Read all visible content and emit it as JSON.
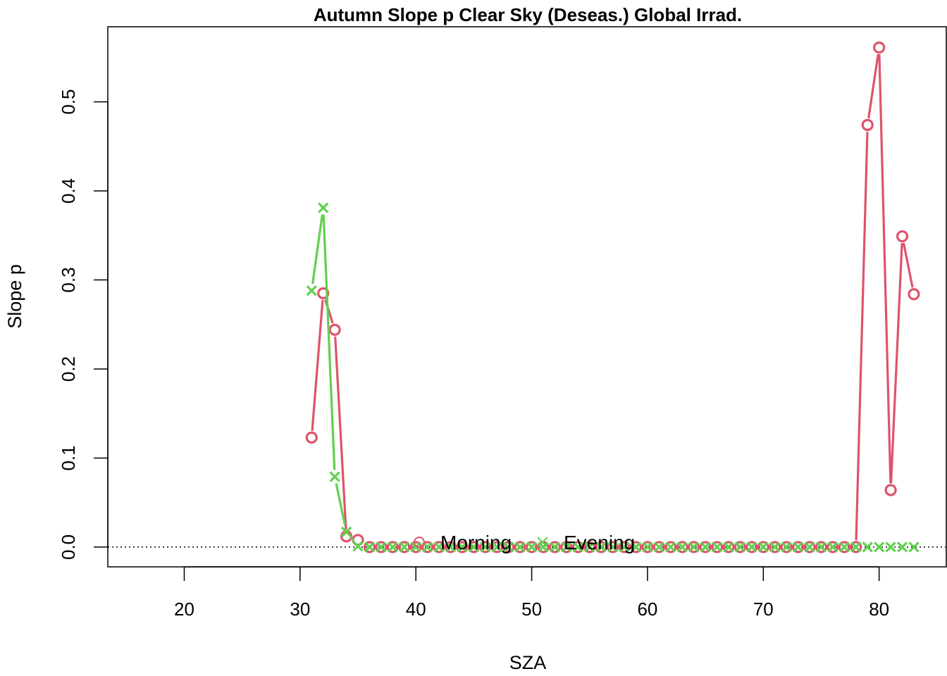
{
  "chart_data": {
    "type": "line",
    "title": "Autumn Slope p Clear Sky (Deseas.) Global Irrad.",
    "xlabel": "SZA",
    "ylabel": "Slope p",
    "xlim": [
      13.4,
      85.8
    ],
    "ylim": [
      -0.0222,
      0.5843
    ],
    "x_ticks": [
      20,
      30,
      40,
      50,
      60,
      70,
      80
    ],
    "y_ticks": [
      0.0,
      0.1,
      0.2,
      0.3,
      0.4,
      0.5
    ],
    "y_tick_labels": [
      "0.0",
      "0.1",
      "0.2",
      "0.3",
      "0.4",
      "0.5"
    ],
    "reference_line": {
      "y": 0,
      "style": "dotted",
      "color": "#000000"
    },
    "legend": {
      "placement": "bottom-center",
      "horizontal": true
    },
    "series": [
      {
        "name": "Morning",
        "color": "#DF536B",
        "marker": "circle",
        "points": [
          [
            31,
            0.123
          ],
          [
            32,
            0.285
          ],
          [
            33,
            0.244
          ],
          [
            34,
            0.012
          ],
          [
            35,
            0.008
          ],
          [
            36,
            0
          ],
          [
            37,
            0
          ],
          [
            38,
            0
          ],
          [
            39,
            0
          ],
          [
            40,
            0
          ],
          [
            41,
            0
          ],
          [
            42,
            0
          ],
          [
            43,
            0
          ],
          [
            44,
            0
          ],
          [
            45,
            0
          ],
          [
            46,
            0
          ],
          [
            47,
            0
          ],
          [
            48,
            0
          ],
          [
            49,
            0
          ],
          [
            50,
            0
          ],
          [
            51,
            0
          ],
          [
            52,
            0
          ],
          [
            53,
            0
          ],
          [
            54,
            0
          ],
          [
            55,
            0
          ],
          [
            56,
            0
          ],
          [
            57,
            0
          ],
          [
            58,
            0
          ],
          [
            59,
            0
          ],
          [
            60,
            0
          ],
          [
            61,
            0
          ],
          [
            62,
            0
          ],
          [
            63,
            0
          ],
          [
            64,
            0
          ],
          [
            65,
            0
          ],
          [
            66,
            0
          ],
          [
            67,
            0
          ],
          [
            68,
            0
          ],
          [
            69,
            0
          ],
          [
            70,
            0
          ],
          [
            71,
            0
          ],
          [
            72,
            0
          ],
          [
            73,
            0
          ],
          [
            74,
            0
          ],
          [
            75,
            0
          ],
          [
            76,
            0
          ],
          [
            77,
            0
          ],
          [
            78,
            0
          ],
          [
            79,
            0.474
          ],
          [
            80,
            0.561
          ],
          [
            81,
            0.064
          ],
          [
            82,
            0.349
          ],
          [
            83,
            0.284
          ]
        ]
      },
      {
        "name": "Evening",
        "color": "#61D04F",
        "marker": "cross",
        "points": [
          [
            31,
            0.288
          ],
          [
            32,
            0.381
          ],
          [
            33,
            0.079
          ],
          [
            34,
            0.017
          ],
          [
            35,
            0.001
          ],
          [
            36,
            0
          ],
          [
            37,
            0
          ],
          [
            38,
            0
          ],
          [
            39,
            0
          ],
          [
            40,
            0
          ],
          [
            41,
            0
          ],
          [
            42,
            0
          ],
          [
            43,
            0
          ],
          [
            44,
            0
          ],
          [
            45,
            0
          ],
          [
            46,
            0
          ],
          [
            47,
            0
          ],
          [
            48,
            0
          ],
          [
            49,
            0
          ],
          [
            50,
            0
          ],
          [
            51,
            0
          ],
          [
            52,
            0
          ],
          [
            53,
            0
          ],
          [
            54,
            0
          ],
          [
            55,
            0
          ],
          [
            56,
            0
          ],
          [
            57,
            0
          ],
          [
            58,
            0
          ],
          [
            59,
            0
          ],
          [
            60,
            0
          ],
          [
            61,
            0
          ],
          [
            62,
            0
          ],
          [
            63,
            0
          ],
          [
            64,
            0
          ],
          [
            65,
            0
          ],
          [
            66,
            0
          ],
          [
            67,
            0
          ],
          [
            68,
            0
          ],
          [
            69,
            0
          ],
          [
            70,
            0
          ],
          [
            71,
            0
          ],
          [
            72,
            0
          ],
          [
            73,
            0
          ],
          [
            74,
            0
          ],
          [
            75,
            0
          ],
          [
            76,
            0
          ],
          [
            77,
            0
          ],
          [
            78,
            0
          ],
          [
            79,
            0
          ],
          [
            80,
            0
          ],
          [
            81,
            0
          ],
          [
            82,
            0
          ],
          [
            83,
            0
          ]
        ]
      }
    ]
  }
}
